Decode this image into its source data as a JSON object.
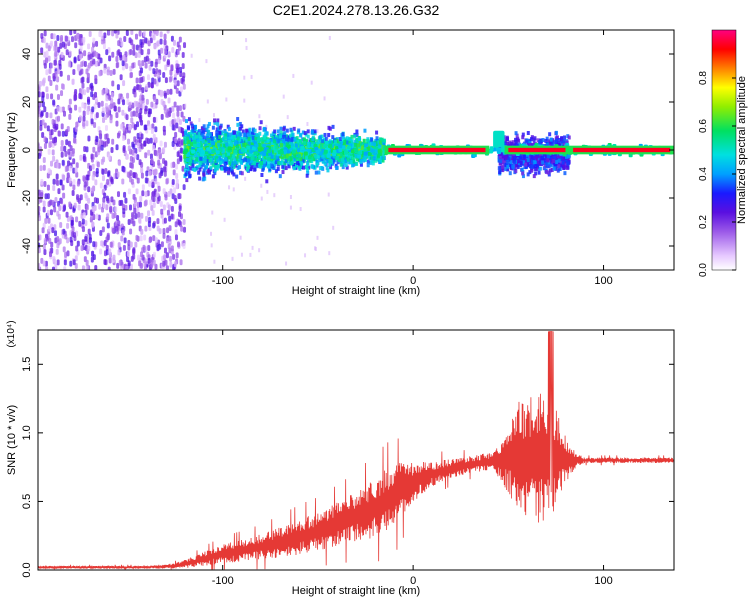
{
  "title": "C2E1.2024.278.13.26.G32",
  "colors": {
    "snr_line": "#e53935",
    "spectrogram_low": "#e8d8f8",
    "spectrogram_mid": "#6a1de0",
    "spectrogram_peak": "#ff0000"
  },
  "chart_data": [
    {
      "type": "heatmap",
      "title": "",
      "xlabel": "Height of straight line (km)",
      "ylabel": "Frequency (Hz)",
      "xlim": [
        -197,
        137
      ],
      "ylim": [
        -50,
        50
      ],
      "xticks": [
        -100,
        0,
        100
      ],
      "xtick_labels": [
        "-100",
        "0",
        "100"
      ],
      "yticks": [
        -40,
        -20,
        0,
        20,
        40
      ],
      "ytick_labels": [
        "-40",
        "-20",
        "0",
        "20",
        "40"
      ],
      "colorbar": {
        "label": "Normalized spectral amplitude",
        "range": [
          0.0,
          1.0
        ],
        "ticks": [
          0.0,
          0.2,
          0.4,
          0.6,
          0.8
        ],
        "tick_labels": [
          "0.0",
          "0.2",
          "0.4",
          "0.6",
          "0.8"
        ],
        "colormap": "white-purple-blue-cyan-green-yellow-red-magenta"
      },
      "features": [
        {
          "region": "noise",
          "x_range": [
            -197,
            -120
          ],
          "freq_range": [
            -50,
            50
          ],
          "amplitude": 0.15
        },
        {
          "region": "broadband signal",
          "x_range": [
            -120,
            -15
          ],
          "freq_range": [
            -15,
            15
          ],
          "amplitude": 0.3
        },
        {
          "region": "narrow signal",
          "x_range": [
            -15,
            137
          ],
          "freq_range": [
            -2,
            2
          ],
          "amplitude": 0.95
        },
        {
          "region": "scintillation",
          "x_range": [
            45,
            82
          ],
          "freq_range": [
            -15,
            8
          ],
          "amplitude": 0.35
        }
      ]
    },
    {
      "type": "line",
      "title": "",
      "xlabel": "Height of straight line (km)",
      "ylabel": "SNR (10 * v/v)",
      "scale_label": "(x10⁴)",
      "xlim": [
        -197,
        137
      ],
      "ylim": [
        0,
        1.75
      ],
      "xticks": [
        -100,
        0,
        100
      ],
      "xtick_labels": [
        "-100",
        "0",
        "100"
      ],
      "yticks": [
        0.0,
        0.5,
        1.0,
        1.5
      ],
      "ytick_labels": [
        "0.0",
        "0.5",
        "1.0",
        "1.5"
      ],
      "series": [
        {
          "x": [
            -197,
            -180,
            -160,
            -140,
            -125,
            -115,
            -100,
            -90,
            -80,
            -70,
            -60,
            -50,
            -40,
            -30,
            -20,
            -10,
            0,
            10,
            20,
            30,
            40,
            45,
            50,
            55,
            60,
            65,
            70,
            75,
            80,
            85,
            90,
            100,
            110,
            120,
            130,
            137
          ],
          "y": [
            0.02,
            0.02,
            0.02,
            0.02,
            0.03,
            0.06,
            0.12,
            0.14,
            0.17,
            0.2,
            0.24,
            0.28,
            0.33,
            0.39,
            0.45,
            0.54,
            0.64,
            0.7,
            0.74,
            0.77,
            0.79,
            0.8,
            0.81,
            0.82,
            0.83,
            0.82,
            0.83,
            0.82,
            0.81,
            0.8,
            0.8,
            0.8,
            0.8,
            0.8,
            0.8,
            0.8
          ],
          "spread": [
            0.01,
            0.01,
            0.01,
            0.01,
            0.02,
            0.04,
            0.07,
            0.08,
            0.09,
            0.11,
            0.13,
            0.14,
            0.16,
            0.18,
            0.22,
            0.24,
            0.15,
            0.09,
            0.07,
            0.06,
            0.07,
            0.12,
            0.25,
            0.4,
            0.45,
            0.48,
            0.5,
            0.4,
            0.18,
            0.06,
            0.02,
            0.02,
            0.02,
            0.02,
            0.02,
            0.02
          ]
        }
      ]
    }
  ]
}
